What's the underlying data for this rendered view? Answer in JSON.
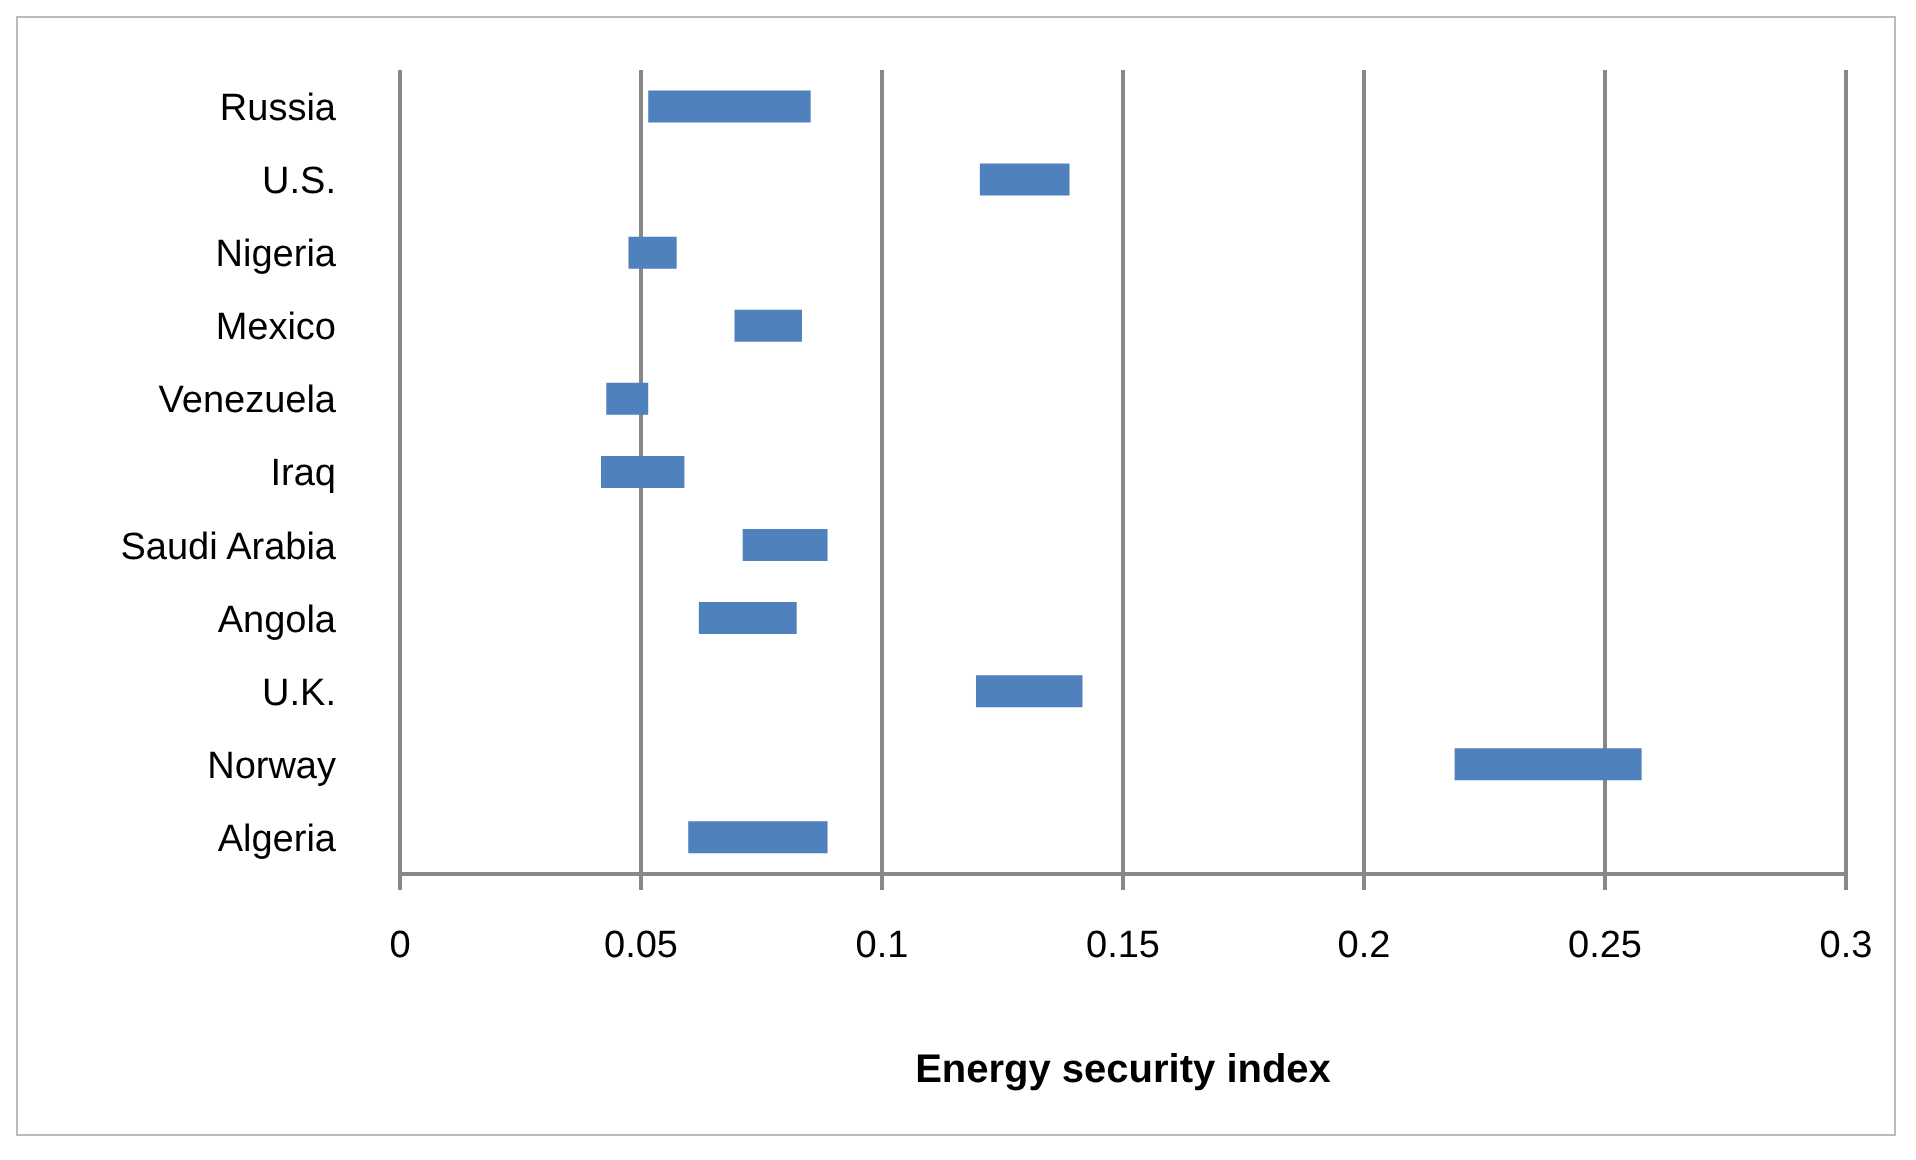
{
  "chart_data": {
    "type": "bar",
    "orientation": "horizontal",
    "xlabel": "Energy security index",
    "categories": [
      "Russia",
      "U.S.",
      "Nigeria",
      "Mexico",
      "Venezuela",
      "Iraq",
      "Saudi Arabia",
      "Angola",
      "U.K.",
      "Norway",
      "Algeria"
    ],
    "base": [
      0.0515,
      0.1203,
      0.0474,
      0.0694,
      0.0428,
      0.0417,
      0.0711,
      0.062,
      0.1195,
      0.2188,
      0.0598
    ],
    "values": [
      0.0337,
      0.0186,
      0.01,
      0.014,
      0.0087,
      0.0173,
      0.0176,
      0.0203,
      0.0221,
      0.0388,
      0.0289
    ],
    "color": "#4f81bd",
    "xlim": [
      0,
      0.3
    ],
    "xticks": [
      0,
      0.05,
      0.1,
      0.15,
      0.2,
      0.25,
      0.3
    ],
    "grid": "x"
  }
}
